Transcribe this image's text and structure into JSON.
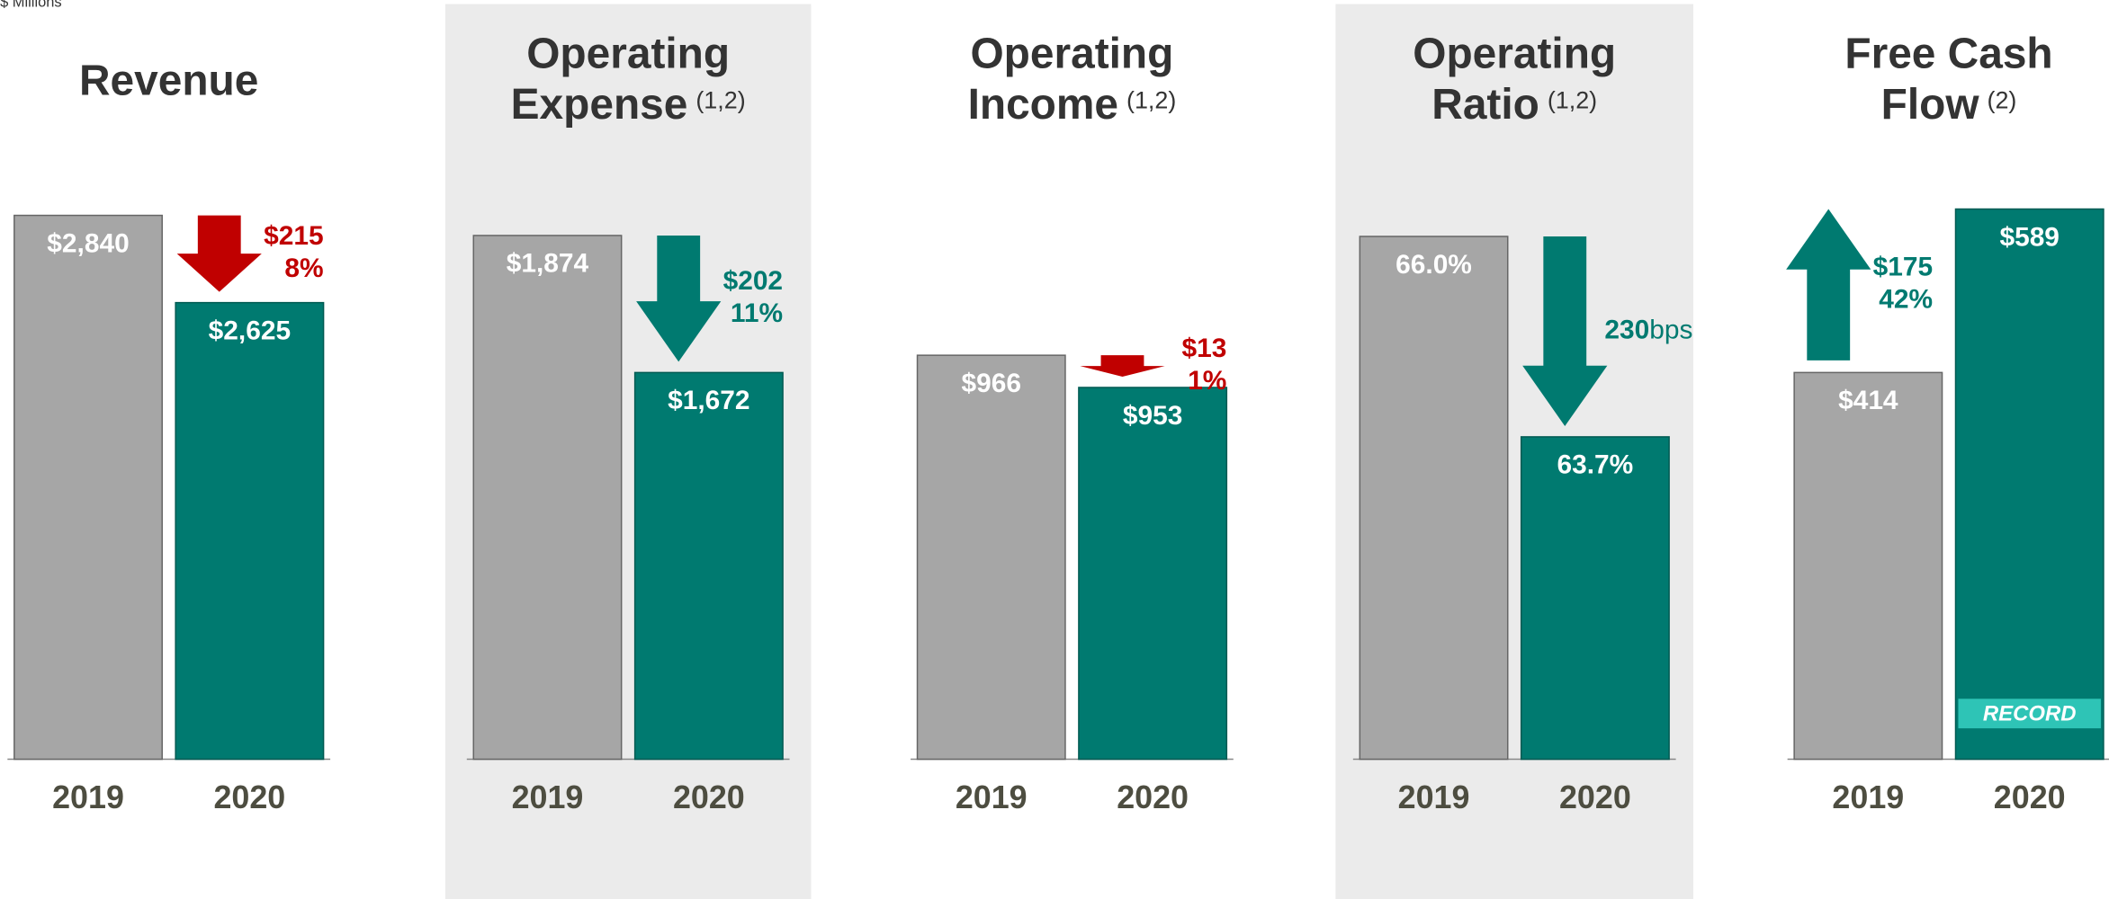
{
  "unit_note": "$ Millions",
  "chart_data": [
    {
      "type": "bar",
      "title_lines": [
        "Revenue"
      ],
      "categories": [
        "2019",
        "2020"
      ],
      "values": [
        2840,
        2625
      ],
      "value_labels": [
        "$2,840",
        "$2,625"
      ],
      "colors": [
        "#a6a6a6",
        "#007a70"
      ],
      "ylim": [
        1500,
        2874
      ],
      "background": false,
      "change": {
        "direction": "down",
        "color": "#c00000",
        "amount": "$215",
        "percent": "8%"
      }
    },
    {
      "type": "bar",
      "title_lines": [
        "Operating",
        "Expense"
      ],
      "footnote": "(1,2)",
      "categories": [
        "2019",
        "2020"
      ],
      "values": [
        1874,
        1672
      ],
      "value_labels": [
        "$1,874",
        "$1,672"
      ],
      "colors": [
        "#a6a6a6",
        "#007a70"
      ],
      "ylim": [
        1102,
        1924
      ],
      "background": true,
      "change": {
        "direction": "down",
        "color": "#007a70",
        "amount": "$202",
        "percent": "11%"
      }
    },
    {
      "type": "bar",
      "title_lines": [
        "Operating",
        "Income"
      ],
      "footnote": "(1,2)",
      "categories": [
        "2019",
        "2020"
      ],
      "values": [
        966,
        953
      ],
      "value_labels": [
        "$966",
        "$953"
      ],
      "colors": [
        "#a6a6a6",
        "#007a70"
      ],
      "ylim": [
        803,
        1028
      ],
      "background": false,
      "change": {
        "direction": "down",
        "color": "#c00000",
        "amount": "$13",
        "percent": "1%"
      }
    },
    {
      "type": "bar",
      "title_lines": [
        "Operating",
        "Ratio"
      ],
      "footnote": "(1,2)",
      "categories": [
        "2019",
        "2020"
      ],
      "values": [
        66.0,
        63.7
      ],
      "value_labels": [
        "66.0%",
        "63.7%"
      ],
      "colors": [
        "#a6a6a6",
        "#007a70"
      ],
      "ylim": [
        60,
        66.4
      ],
      "background": true,
      "change": {
        "direction": "down",
        "color": "#007a70",
        "amount": "230",
        "unit": "bps"
      }
    },
    {
      "type": "bar",
      "title_lines": [
        "Free Cash",
        "Flow"
      ],
      "footnote": "(2)",
      "categories": [
        "2019",
        "2020"
      ],
      "values": [
        414,
        589
      ],
      "value_labels": [
        "$414",
        "$589"
      ],
      "colors": [
        "#a6a6a6",
        "#007a70"
      ],
      "ylim": [
        0,
        597
      ],
      "background": false,
      "change": {
        "direction": "up",
        "color": "#007a70",
        "amount": "$175",
        "percent": "42%"
      },
      "badge": "RECORD"
    }
  ]
}
